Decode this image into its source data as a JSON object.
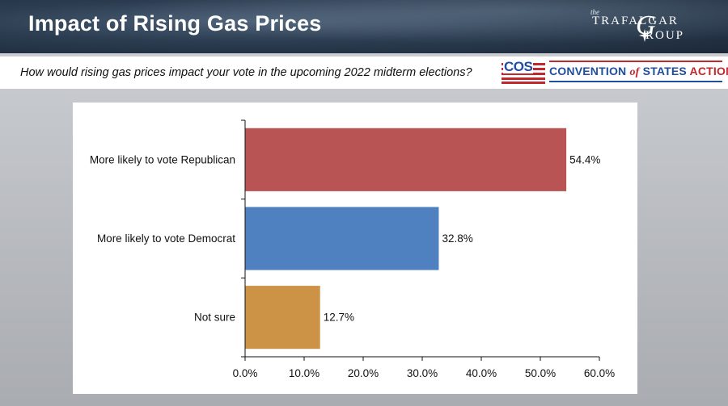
{
  "header": {
    "title": "Impact of Rising Gas Prices",
    "logo": {
      "the": "the",
      "line1": "TRAFAL",
      "line2": "GAR",
      "line3": "ROUP",
      "mark": "G"
    }
  },
  "question": "How would rising gas prices impact your vote in the upcoming 2022 midterm elections?",
  "sponsor": {
    "abbr": "COS",
    "name_part1": "CONVENTION ",
    "name_of": "of",
    "name_part2": " STATES ",
    "name_action": "ACTION",
    "colors": {
      "blue": "#1f4ea1",
      "red": "#c1272d"
    }
  },
  "chart_data": {
    "type": "bar",
    "orientation": "horizontal",
    "categories": [
      "More likely to vote Republican",
      "More likely to vote Democrat",
      "Not sure"
    ],
    "values": [
      54.4,
      32.8,
      12.7
    ],
    "value_labels": [
      "54.4%",
      "32.8%",
      "12.7%"
    ],
    "colors": [
      "#b85554",
      "#4f81c0",
      "#cc9245"
    ],
    "xlim": [
      0,
      60
    ],
    "xticks": [
      0,
      10,
      20,
      30,
      40,
      50,
      60
    ],
    "xtick_labels": [
      "0.0%",
      "10.0%",
      "20.0%",
      "30.0%",
      "40.0%",
      "50.0%",
      "60.0%"
    ],
    "grid": false,
    "legend": "none",
    "title": "",
    "xlabel": "",
    "ylabel": ""
  }
}
